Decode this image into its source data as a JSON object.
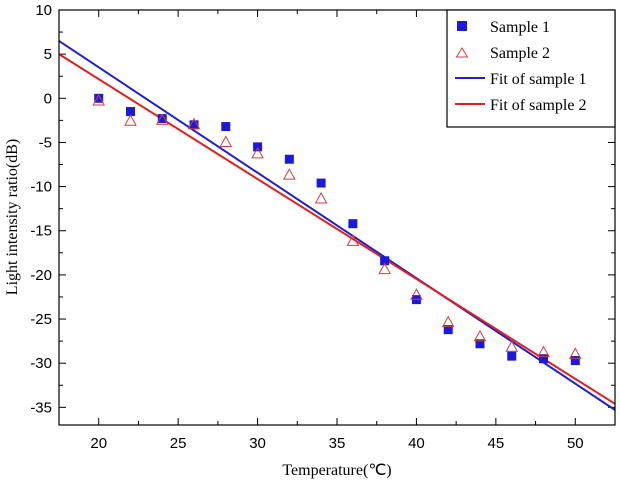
{
  "chart_data": {
    "type": "scatter",
    "title": "",
    "xlabel": "Temperature(℃)",
    "ylabel": "Light intensity ratio(dB)",
    "xlim": [
      17.5,
      52.5
    ],
    "ylim": [
      -37,
      10
    ],
    "xticks": [
      20,
      25,
      30,
      35,
      40,
      45,
      50
    ],
    "yticks": [
      10,
      5,
      0,
      -5,
      -10,
      -15,
      -20,
      -25,
      -30,
      -35
    ],
    "grid": false,
    "legend_position": "top-right",
    "series": [
      {
        "name": "Sample 1",
        "marker": "filled-square",
        "color": "#1a1adc",
        "x": [
          20,
          22,
          24,
          26,
          28,
          30,
          32,
          34,
          36,
          38,
          40,
          42,
          44,
          46,
          48,
          50
        ],
        "y": [
          0,
          -1.5,
          -2.3,
          -3,
          -3.2,
          -5.5,
          -6.9,
          -9.6,
          -14.2,
          -18.4,
          -22.8,
          -26.2,
          -27.8,
          -29.2,
          -29.5,
          -29.7
        ]
      },
      {
        "name": "Sample 2",
        "marker": "open-triangle",
        "color": "#d04040",
        "x": [
          20,
          22,
          24,
          26,
          28,
          30,
          32,
          34,
          36,
          38,
          40,
          42,
          44,
          46,
          48,
          50
        ],
        "y": [
          -0.3,
          -2.6,
          -2.5,
          -3,
          -5,
          -6.3,
          -8.7,
          -11.4,
          -16.2,
          -19.4,
          -22.3,
          -25.4,
          -27,
          -28.2,
          -28.8,
          -29
        ]
      },
      {
        "name": "Fit of sample 1",
        "type": "line",
        "color": "#1f1fd0",
        "x": [
          17.5,
          52.5
        ],
        "y": [
          6.5,
          -35.3
        ]
      },
      {
        "name": "Fit of sample 2",
        "type": "line",
        "color": "#e02020",
        "x": [
          17.5,
          52.5
        ],
        "y": [
          5,
          -34.6
        ]
      }
    ]
  }
}
